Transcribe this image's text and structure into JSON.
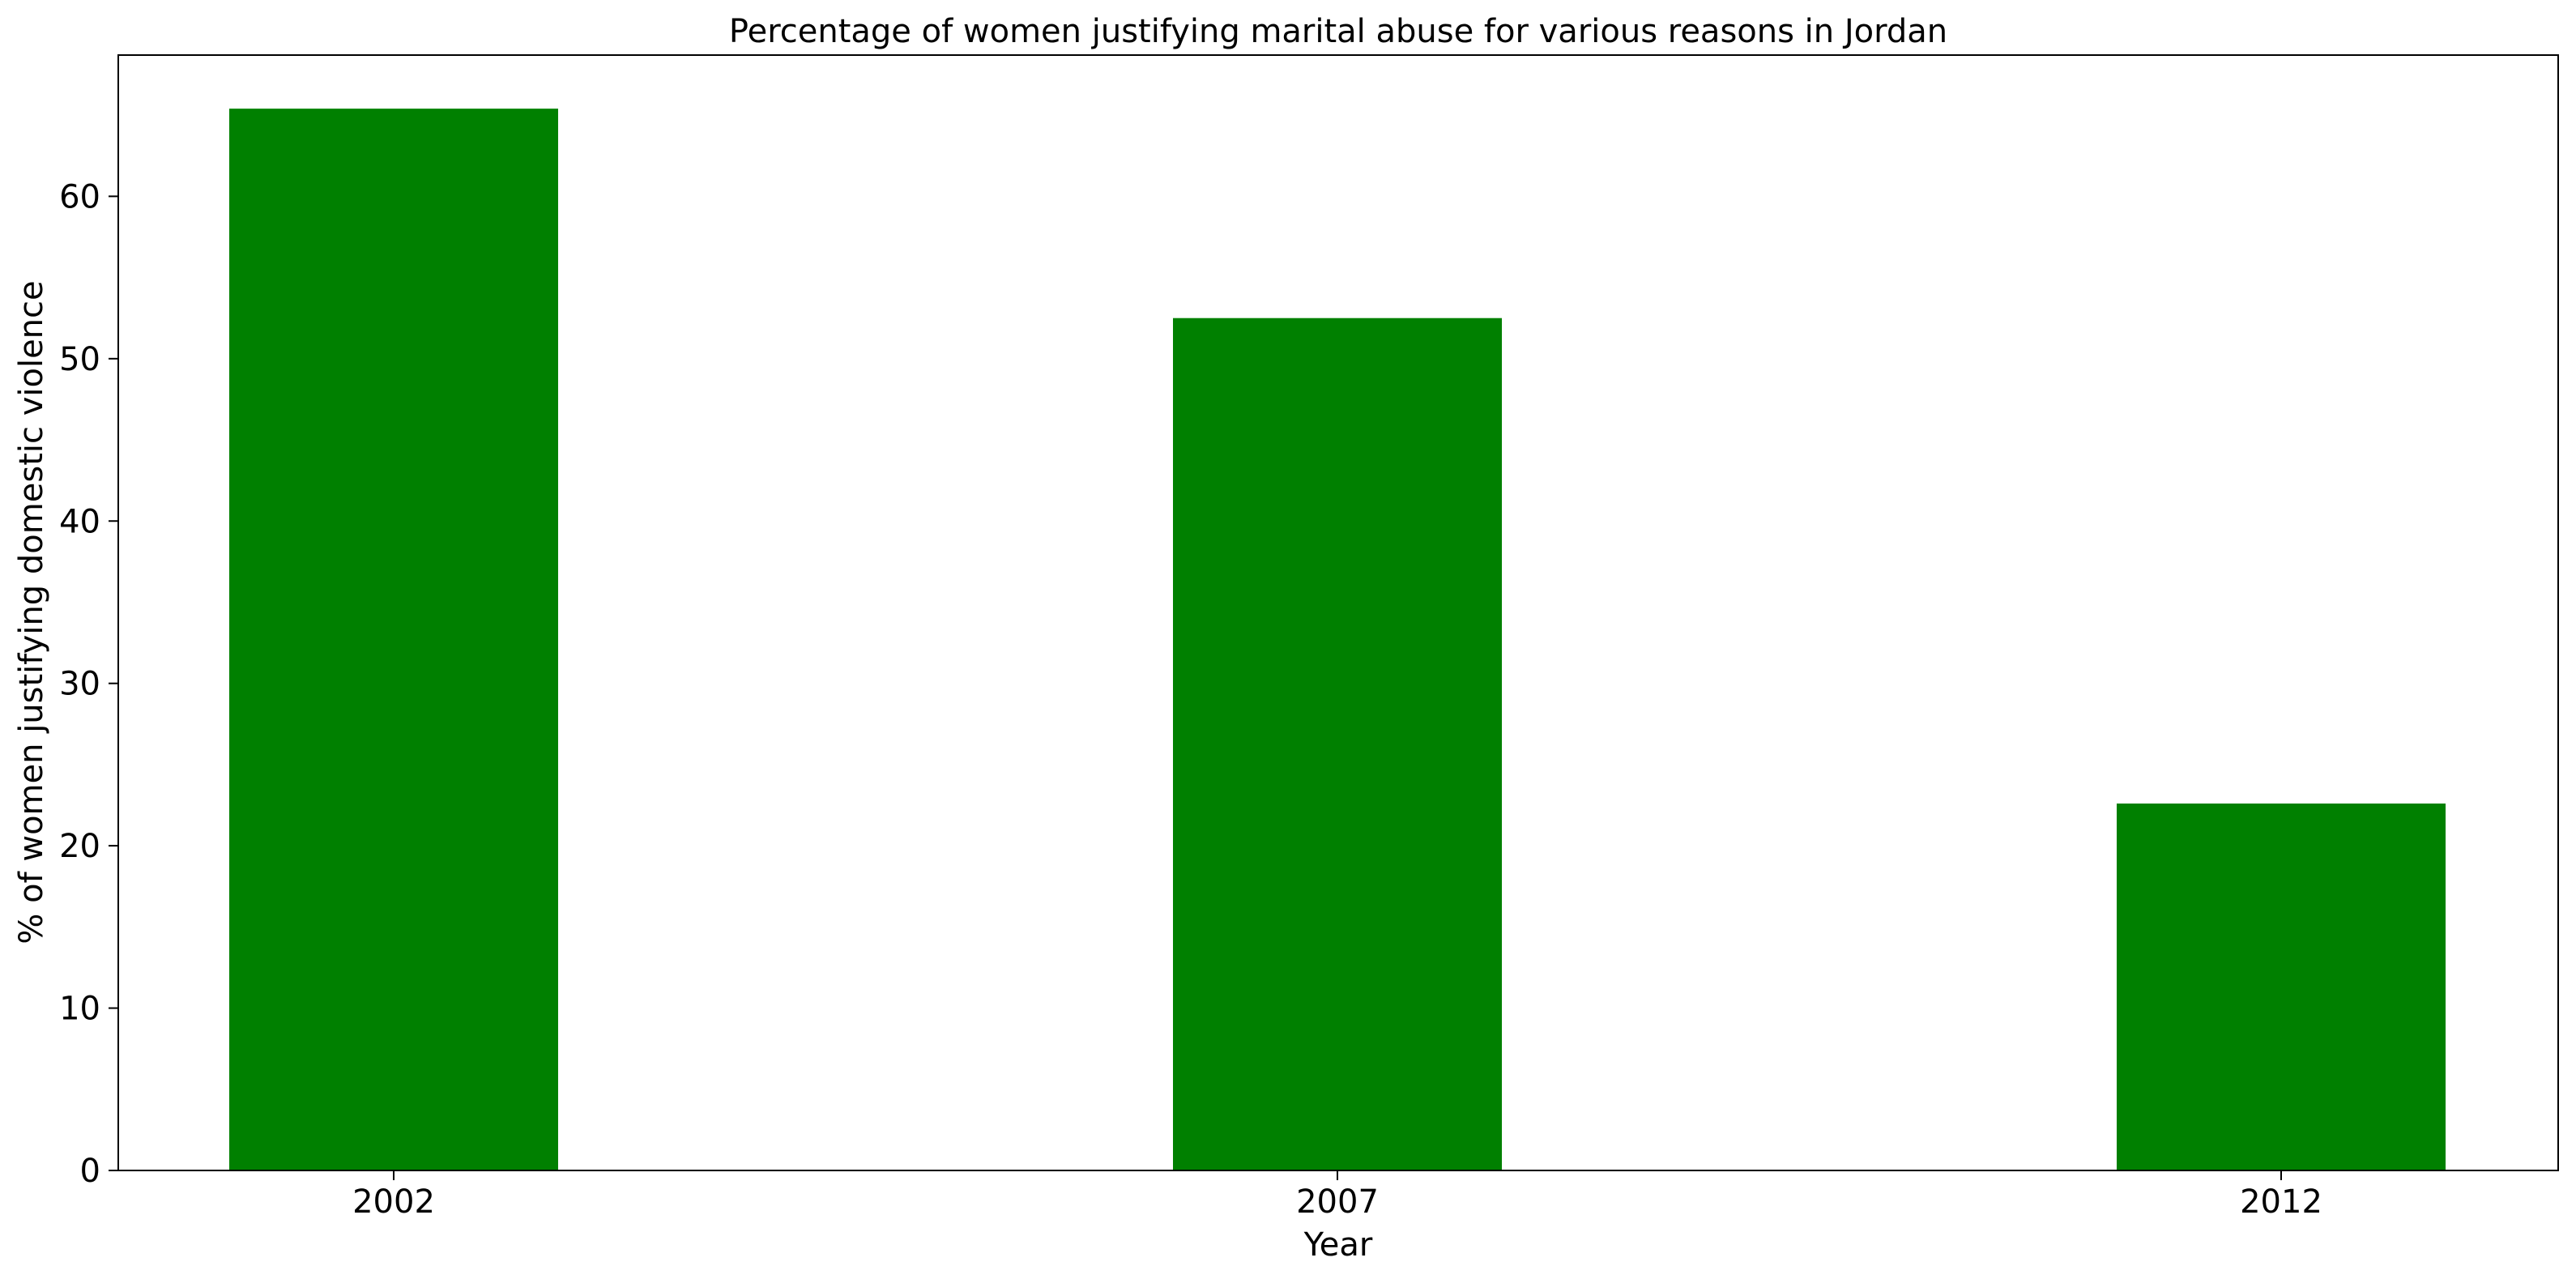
{
  "chart_data": {
    "type": "bar",
    "title": "Percentage of women justifying marital abuse for various reasons in Jordan",
    "xlabel": "Year",
    "ylabel": "% of women justifying domestic violence",
    "categories": [
      "2002",
      "2007",
      "2012"
    ],
    "values": [
      65.4,
      52.5,
      22.6
    ],
    "ylim": [
      0,
      68.7
    ],
    "yticks": [
      0,
      10,
      20,
      30,
      40,
      50,
      60
    ],
    "grid": false,
    "legend": "none",
    "colors": {
      "bar": "#008000",
      "axis": "#000000",
      "background": "#ffffff"
    }
  }
}
